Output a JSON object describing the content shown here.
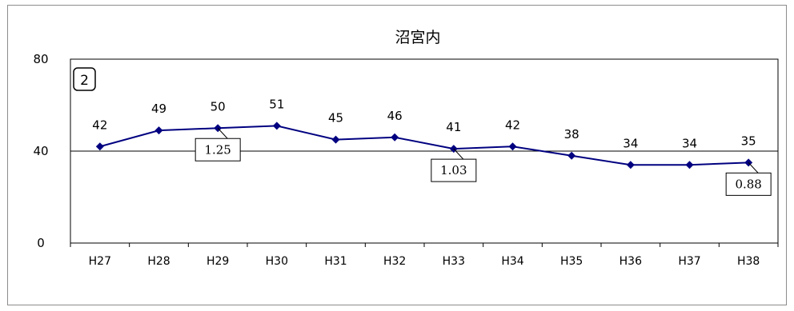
{
  "chart_data": {
    "type": "line",
    "title": "沼宮内",
    "badge": "2",
    "categories": [
      "H27",
      "H28",
      "H29",
      "H30",
      "H31",
      "H32",
      "H33",
      "H34",
      "H35",
      "H36",
      "H37",
      "H38"
    ],
    "values": [
      42,
      49,
      50,
      51,
      45,
      46,
      41,
      42,
      38,
      34,
      34,
      35
    ],
    "ylim": [
      0,
      80
    ],
    "yticks": [
      "0",
      "40",
      "80"
    ],
    "reference_line": 40,
    "callouts": [
      {
        "category": "H29",
        "text": "1.25"
      },
      {
        "category": "H33",
        "text": "1.03"
      },
      {
        "category": "H38",
        "text": "0.88"
      }
    ],
    "series_color": "#000080",
    "grid": false
  }
}
